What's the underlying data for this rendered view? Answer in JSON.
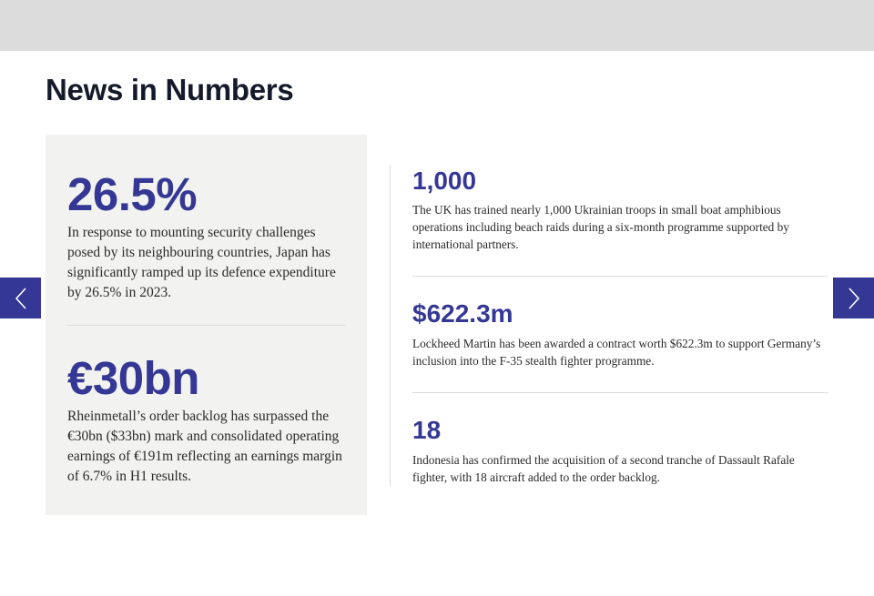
{
  "section": {
    "title": "News in Numbers"
  },
  "featured": [
    {
      "value": "26.5%",
      "description": "In response to mounting security challenges posed by its neighbouring countries, Japan has significantly ramped up its defence expenditure by 26.5% in 2023."
    },
    {
      "value": "€30bn",
      "description": "Rheinmetall’s order backlog has surpassed the €30bn ($33bn) mark and consolidated operating earnings of €191m reflecting an earnings margin of 6.7% in H1 results."
    }
  ],
  "items": [
    {
      "value": "1,000",
      "description": "The UK has trained nearly 1,000 Ukrainian troops in small boat amphibious operations including beach raids during a six-month programme supported by international partners."
    },
    {
      "value": "$622.3m",
      "description": "Lockheed Martin has been awarded a contract worth $622.3m to support Germany’s inclusion into the F-35 stealth fighter programme."
    },
    {
      "value": "18",
      "description": "Indonesia has confirmed the acquisition of a second tranche of Dassault Rafale fighter, with 18 aircraft added to the order backlog."
    }
  ],
  "navigation": {
    "prev_icon": "chevron-left-icon",
    "next_icon": "chevron-right-icon"
  },
  "colors": {
    "accent": "#343894",
    "panel_bg": "#f2f2f0",
    "header_bar": "#dcdcdc",
    "title_text": "#151a2b"
  }
}
